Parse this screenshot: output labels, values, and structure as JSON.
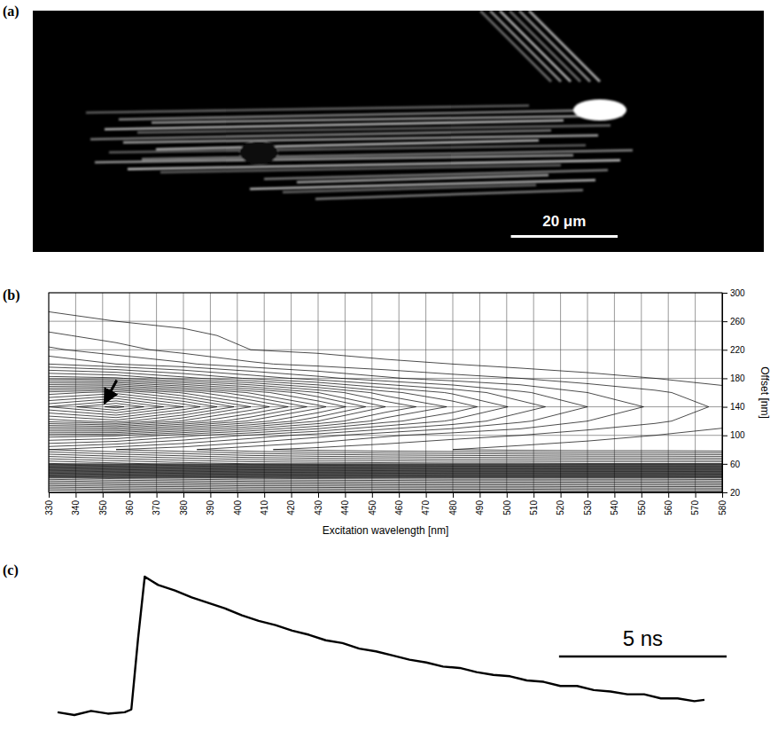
{
  "chart_data": [
    {
      "type": "image",
      "label": "(a)",
      "field_width": 137,
      "scale_bar": {
        "value": 20,
        "label": "20 μm"
      }
    },
    {
      "type": "contour",
      "label": "(b)",
      "x_label": "Excitation wavelength [nm]",
      "y_label": "Offset [nm]",
      "xlim": [
        330,
        580
      ],
      "ylim": [
        20,
        300
      ],
      "xticks": [
        330,
        340,
        350,
        360,
        370,
        380,
        390,
        400,
        410,
        420,
        430,
        440,
        450,
        460,
        470,
        480,
        490,
        500,
        510,
        520,
        530,
        540,
        550,
        560,
        570,
        580
      ],
      "yticks": [
        20,
        60,
        100,
        140,
        180,
        220,
        260,
        300
      ],
      "grid": true,
      "x": [
        330,
        355,
        380,
        405,
        430,
        455,
        480,
        505,
        530,
        555,
        580
      ],
      "y": [
        20,
        40,
        60,
        80,
        100,
        120,
        140,
        160,
        180,
        200,
        220,
        240,
        260,
        280,
        300
      ],
      "z": [
        [
          207,
          205,
          204,
          202,
          202,
          201,
          201,
          201,
          200,
          200,
          200
        ],
        [
          161,
          158,
          156,
          154,
          153,
          152,
          151,
          151,
          151,
          151,
          150
        ],
        [
          56,
          52,
          48,
          45,
          44,
          43,
          42,
          42,
          41,
          41,
          41
        ],
        [
          25,
          20,
          16,
          11,
          8,
          6,
          5,
          3,
          2,
          2,
          1
        ],
        [
          48,
          46,
          37,
          29,
          22,
          16,
          12,
          10,
          7,
          5,
          3
        ],
        [
          87,
          93,
          79,
          64,
          50,
          37,
          29,
          21,
          15,
          11,
          7
        ],
        [
          110,
          122,
          105,
          85,
          67,
          50,
          39,
          28,
          20,
          14,
          9
        ],
        [
          87,
          93,
          79,
          64,
          50,
          37,
          29,
          21,
          15,
          11,
          7
        ],
        [
          48,
          46,
          37,
          29,
          22,
          16,
          12,
          10,
          7,
          5,
          3
        ],
        [
          25,
          20,
          16,
          11,
          8,
          6,
          5,
          3,
          2,
          2,
          1
        ],
        [
          16,
          12,
          8,
          5,
          4,
          3,
          2,
          2,
          1,
          1,
          1
        ],
        [
          11,
          8,
          6,
          4,
          3,
          2,
          1,
          1,
          1,
          1,
          0
        ],
        [
          7,
          5,
          4,
          2,
          2,
          1,
          1,
          1,
          0,
          0,
          0
        ],
        [
          4,
          3,
          2,
          1,
          1,
          1,
          1,
          0,
          0,
          0,
          0
        ],
        [
          2,
          2,
          1,
          1,
          1,
          0,
          0,
          0,
          0,
          0,
          0
        ]
      ],
      "levels": [
        5,
        10,
        15,
        20,
        25,
        30,
        35,
        40,
        45,
        50,
        55,
        60,
        65,
        70,
        75,
        80,
        85,
        90,
        95,
        100,
        105,
        110,
        115,
        120,
        125,
        130,
        135,
        140,
        145,
        150,
        155,
        160,
        165,
        170,
        175,
        180,
        185,
        190,
        195,
        200
      ],
      "arrow": {
        "x": 350,
        "y": 140
      }
    },
    {
      "type": "line",
      "label": "(c)",
      "color": "#000000",
      "tick_labels": false,
      "x": [
        0,
        0.5,
        1,
        1.5,
        2,
        2.2,
        2.4,
        2.6,
        2.8,
        3,
        3.5,
        4,
        4.5,
        5,
        5.5,
        6,
        6.5,
        7,
        7.5,
        8,
        8.5,
        9,
        9.5,
        10,
        10.5,
        11,
        11.5,
        12,
        12.5,
        13,
        13.5,
        14,
        14.5,
        15,
        15.5,
        16,
        16.5,
        17,
        17.5,
        18,
        18.5,
        19,
        19.3
      ],
      "values": [
        2,
        0,
        3,
        1,
        2,
        4,
        55,
        100,
        97,
        94,
        90,
        85,
        81,
        77,
        72,
        68,
        65,
        61,
        58,
        54,
        52,
        48,
        46,
        43,
        40,
        38,
        35,
        34,
        31,
        29,
        28,
        25,
        24,
        21,
        21,
        18,
        17,
        15,
        15,
        12,
        12,
        10,
        11
      ],
      "scale_bar": {
        "value": 5,
        "label": "5 ns"
      }
    }
  ]
}
